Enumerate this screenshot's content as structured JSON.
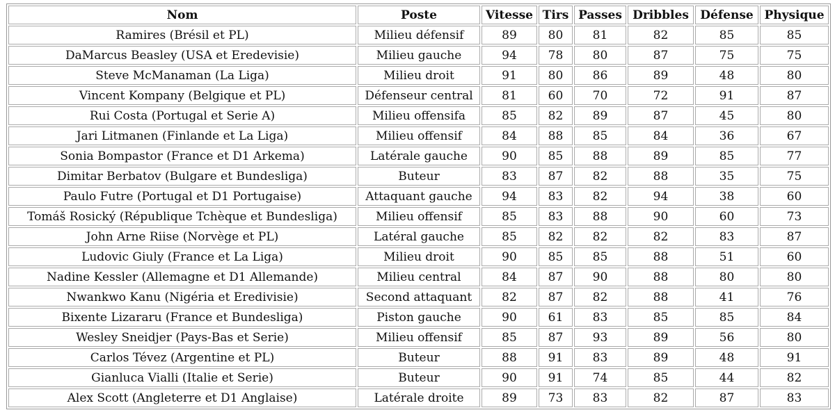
{
  "table": {
    "headers": [
      "Nom",
      "Poste",
      "Vitesse",
      "Tirs",
      "Passes",
      "Dribbles",
      "Défense",
      "Physique"
    ],
    "rows": [
      [
        "Ramires (Brésil et PL)",
        "Milieu défensif",
        89,
        80,
        81,
        82,
        85,
        85
      ],
      [
        "DaMarcus Beasley (USA et Eredevisie)",
        "Milieu gauche",
        94,
        78,
        80,
        87,
        75,
        75
      ],
      [
        "Steve McManaman (La Liga)",
        "Milieu droit",
        91,
        80,
        86,
        89,
        48,
        80
      ],
      [
        "Vincent Kompany (Belgique et PL)",
        "Défenseur central",
        81,
        60,
        70,
        72,
        91,
        87
      ],
      [
        "Rui Costa (Portugal et Serie A)",
        "Milieu offensifa",
        85,
        82,
        89,
        87,
        45,
        80
      ],
      [
        "Jari Litmanen (Finlande et La Liga)",
        "Milieu offensif",
        84,
        88,
        85,
        84,
        36,
        67
      ],
      [
        "Sonia Bompastor (France et D1 Arkema)",
        "Latérale gauche",
        90,
        85,
        88,
        89,
        85,
        77
      ],
      [
        "Dimitar Berbatov (Bulgare et Bundesliga)",
        "Buteur",
        83,
        87,
        82,
        88,
        35,
        75
      ],
      [
        "Paulo Futre (Portugal et D1 Portugaise)",
        "Attaquant gauche",
        94,
        83,
        82,
        94,
        38,
        60
      ],
      [
        "Tomáš Rosický (République Tchèque et Bundesliga)",
        "Milieu offensif",
        85,
        83,
        88,
        90,
        60,
        73
      ],
      [
        "John Arne Riise (Norvège et PL)",
        "Latéral gauche",
        85,
        82,
        82,
        82,
        83,
        87
      ],
      [
        "Ludovic Giuly (France et La Liga)",
        "Milieu droit",
        90,
        85,
        85,
        88,
        51,
        60
      ],
      [
        "Nadine Kessler (Allemagne et D1 Allemande)",
        "Milieu central",
        84,
        87,
        90,
        88,
        80,
        80
      ],
      [
        "Nwankwo Kanu (Nigéria et Eredivisie)",
        "Second attaquant",
        82,
        87,
        82,
        88,
        41,
        76
      ],
      [
        "Bixente Lizararu (France et Bundesliga)",
        "Piston gauche",
        90,
        61,
        83,
        85,
        85,
        84
      ],
      [
        "Wesley Sneidjer (Pays-Bas et Serie)",
        "Milieu offensif",
        85,
        87,
        93,
        89,
        56,
        80
      ],
      [
        "Carlos Tévez (Argentine et PL)",
        "Buteur",
        88,
        91,
        83,
        89,
        48,
        91
      ],
      [
        "Gianluca Vialli (Italie et Serie)",
        "Buteur",
        90,
        91,
        74,
        85,
        44,
        82
      ],
      [
        "Alex Scott (Angleterre et D1 Anglaise)",
        "Latérale droite",
        89,
        73,
        83,
        82,
        87,
        83
      ]
    ]
  }
}
